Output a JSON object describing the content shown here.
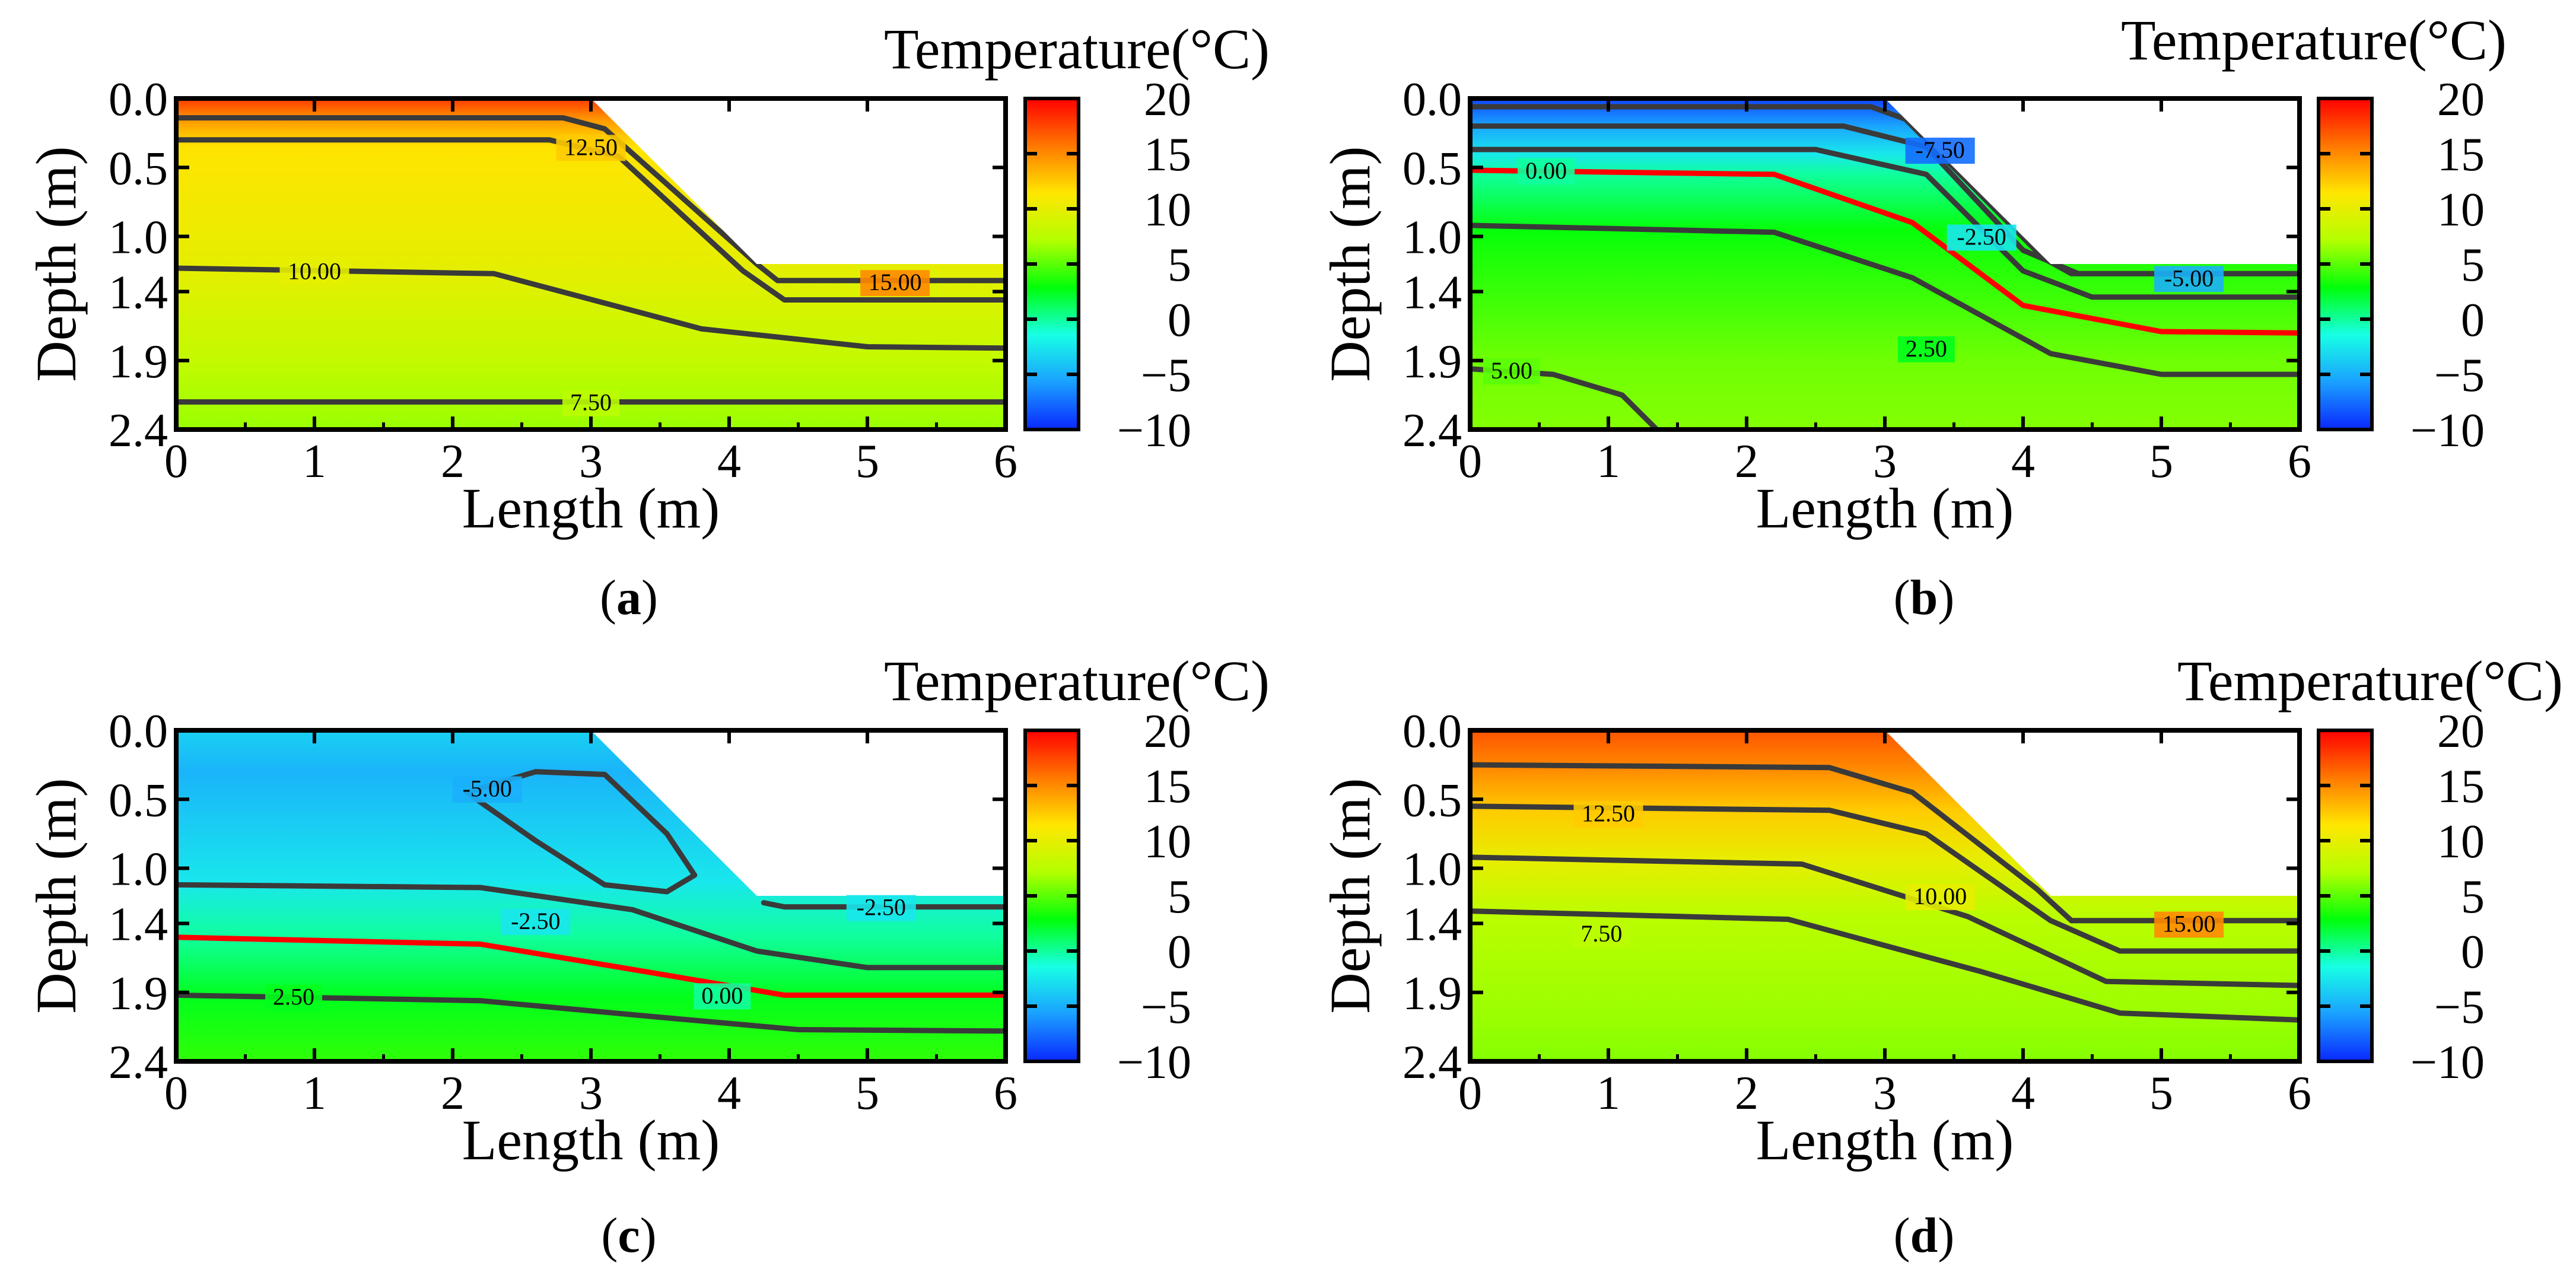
{
  "figure": {
    "panels_layout": "2x2 grid",
    "shared": {
      "xlabel": "Length (m)",
      "ylabel": "Depth (m)",
      "xlim": [
        0,
        6
      ],
      "ylim": [
        0,
        2.4
      ],
      "x_ticks": [
        "0",
        "1",
        "2",
        "3",
        "4",
        "5",
        "6"
      ],
      "y_ticks": [
        "0.0",
        "0.5",
        "1.0",
        "1.4",
        "1.9",
        "2.4"
      ],
      "y_tick_values": [
        0.0,
        0.5,
        1.0,
        1.4,
        1.9,
        2.4
      ],
      "colorbar_title": "Temperature(°C)",
      "colorbar_ticks": [
        "20",
        "15",
        "10",
        "5",
        "0",
        "−5",
        "−10"
      ],
      "colorbar_range": [
        -10,
        20
      ],
      "colormap": [
        "#0a28ff",
        "#1aa0ff",
        "#18ffe6",
        "#00ff0a",
        "#b4ff00",
        "#ffe600",
        "#ff7800",
        "#ff0000"
      ],
      "slope_geometry": {
        "crest_x": 3.0,
        "toe_x": 4.2,
        "toe_depth": 1.2,
        "note": "white unshaded region above the excavated slope"
      },
      "contour_line_color": "#3a3a3a",
      "zero_contour_color": "#ff0000"
    }
  },
  "chart_data": [
    {
      "type": "heatmap",
      "panel_label": "(a)",
      "label_letter": "a",
      "title": "Temperature(°C)",
      "xlabel": "Length (m)",
      "ylabel": "Depth (m)",
      "xlim": [
        0,
        6
      ],
      "ylim": [
        0,
        2.4
      ],
      "contour_labels": [
        {
          "text": "12.50",
          "value": 12.5,
          "x": 3.0,
          "y": 0.35
        },
        {
          "text": "10.00",
          "value": 10.0,
          "x": 1.0,
          "y": 1.25
        },
        {
          "text": "15.00",
          "value": 15.0,
          "x": 5.2,
          "y": 1.33
        },
        {
          "text": "7.50",
          "value": 7.5,
          "x": 3.0,
          "y": 2.2
        }
      ],
      "contours": [
        {
          "value": 15.0,
          "points": [
            [
              0,
              0.14
            ],
            [
              2.8,
              0.14
            ],
            [
              3.1,
              0.22
            ],
            [
              4.2,
              1.2
            ],
            [
              4.35,
              1.32
            ],
            [
              6,
              1.32
            ]
          ]
        },
        {
          "value": 12.5,
          "points": [
            [
              0,
              0.3
            ],
            [
              2.7,
              0.3
            ],
            [
              3.2,
              0.42
            ],
            [
              4.1,
              1.25
            ],
            [
              4.4,
              1.46
            ],
            [
              6,
              1.46
            ]
          ]
        },
        {
          "value": 10.0,
          "points": [
            [
              0,
              1.23
            ],
            [
              2.3,
              1.27
            ],
            [
              3.8,
              1.67
            ],
            [
              5,
              1.8
            ],
            [
              6,
              1.81
            ]
          ]
        },
        {
          "value": 7.5,
          "points": [
            [
              0,
              2.2
            ],
            [
              6,
              2.2
            ]
          ]
        }
      ],
      "field": {
        "surface_temp": 17.0,
        "upper_gradient": 13.0,
        "mid_temp": 10.5,
        "deep_temp": 7.0,
        "bands": [
          [
            0.0,
            18.0
          ],
          [
            0.15,
            14.5
          ],
          [
            0.35,
            11.5
          ],
          [
            1.2,
            10.0
          ],
          [
            1.9,
            8.0
          ],
          [
            2.4,
            6.5
          ]
        ]
      }
    },
    {
      "type": "heatmap",
      "panel_label": "(b)",
      "label_letter": "b",
      "title": "Temperature(°C)",
      "xlabel": "Length (m)",
      "ylabel": "Depth (m)",
      "xlim": [
        0,
        6
      ],
      "ylim": [
        0,
        2.4
      ],
      "contour_labels": [
        {
          "text": "-7.50",
          "value": -7.5,
          "x": 3.4,
          "y": 0.37
        },
        {
          "text": "0.00",
          "value": 0.0,
          "x": 0.55,
          "y": 0.52
        },
        {
          "text": "-2.50",
          "value": -2.5,
          "x": 3.7,
          "y": 1.0
        },
        {
          "text": "-5.00",
          "value": -5.0,
          "x": 5.2,
          "y": 1.3
        },
        {
          "text": "2.50",
          "value": 2.5,
          "x": 3.3,
          "y": 1.81
        },
        {
          "text": "5.00",
          "value": 5.0,
          "x": 0.3,
          "y": 1.97
        }
      ],
      "contours": [
        {
          "value": -7.5,
          "points": [
            [
              0,
              0.06
            ],
            [
              2.9,
              0.06
            ],
            [
              3.15,
              0.15
            ],
            [
              4.15,
              1.16
            ],
            [
              4.35,
              1.27
            ],
            [
              6,
              1.27
            ]
          ]
        },
        {
          "value": -5.0,
          "points": [
            [
              0,
              0.2
            ],
            [
              2.7,
              0.2
            ],
            [
              3.3,
              0.35
            ],
            [
              4.0,
              1.1
            ],
            [
              4.4,
              1.27
            ],
            [
              6,
              1.27
            ]
          ]
        },
        {
          "value": -2.5,
          "points": [
            [
              0,
              0.37
            ],
            [
              2.5,
              0.37
            ],
            [
              3.3,
              0.55
            ],
            [
              4.0,
              1.25
            ],
            [
              4.5,
              1.44
            ],
            [
              6,
              1.44
            ]
          ]
        },
        {
          "value": 0.0,
          "points": [
            [
              0,
              0.52
            ],
            [
              2.2,
              0.55
            ],
            [
              3.2,
              0.9
            ],
            [
              4.0,
              1.5
            ],
            [
              5,
              1.69
            ],
            [
              6,
              1.7
            ]
          ]
        },
        {
          "value": 2.5,
          "points": [
            [
              0,
              0.92
            ],
            [
              2.2,
              0.97
            ],
            [
              3.2,
              1.3
            ],
            [
              4.2,
              1.85
            ],
            [
              5,
              2.0
            ],
            [
              6,
              2.0
            ]
          ]
        },
        {
          "value": 5.0,
          "points": [
            [
              0,
              1.96
            ],
            [
              0.6,
              2.0
            ],
            [
              1.1,
              2.15
            ],
            [
              1.35,
              2.4
            ]
          ]
        }
      ],
      "field": {
        "bands": [
          [
            0.0,
            -9.0
          ],
          [
            0.2,
            -5.5
          ],
          [
            0.4,
            -2.5
          ],
          [
            0.55,
            0.0
          ],
          [
            0.95,
            3.0
          ],
          [
            1.9,
            5.5
          ],
          [
            2.4,
            6.0
          ]
        ]
      }
    },
    {
      "type": "heatmap",
      "panel_label": "(c)",
      "label_letter": "c",
      "title": "Temperature(°C)",
      "xlabel": "Length (m)",
      "ylabel": "Depth (m)",
      "xlim": [
        0,
        6
      ],
      "ylim": [
        0,
        2.4
      ],
      "contour_labels": [
        {
          "text": "-5.00",
          "value": -5.0,
          "x": 2.25,
          "y": 0.42
        },
        {
          "text": "-2.50",
          "value": -2.5,
          "x": 5.1,
          "y": 1.28
        },
        {
          "text": "-2.50",
          "value": -2.5,
          "x": 2.6,
          "y": 1.38
        },
        {
          "text": "0.00",
          "value": 0.0,
          "x": 3.95,
          "y": 1.92
        },
        {
          "text": "2.50",
          "value": 2.5,
          "x": 0.85,
          "y": 1.93
        }
      ],
      "contours": [
        {
          "value": -5.0,
          "closed": true,
          "points": [
            [
              2.1,
              0.45
            ],
            [
              2.6,
              0.3
            ],
            [
              3.1,
              0.32
            ],
            [
              3.55,
              0.75
            ],
            [
              3.75,
              1.05
            ],
            [
              3.55,
              1.17
            ],
            [
              3.1,
              1.12
            ],
            [
              2.6,
              0.8
            ],
            [
              2.1,
              0.45
            ]
          ]
        },
        {
          "value": -2.5,
          "points": [
            [
              0,
              1.12
            ],
            [
              2.2,
              1.14
            ],
            [
              3.3,
              1.3
            ],
            [
              4.2,
              1.6
            ],
            [
              5,
              1.72
            ],
            [
              6,
              1.72
            ]
          ]
        },
        {
          "value": -2.5,
          "points": [
            [
              4.25,
              1.25
            ],
            [
              4.4,
              1.28
            ],
            [
              6,
              1.28
            ]
          ]
        },
        {
          "value": 0.0,
          "points": [
            [
              0,
              1.5
            ],
            [
              2.2,
              1.55
            ],
            [
              3.4,
              1.75
            ],
            [
              4.4,
              1.92
            ],
            [
              6,
              1.92
            ]
          ]
        },
        {
          "value": 2.5,
          "points": [
            [
              0,
              1.92
            ],
            [
              2.2,
              1.96
            ],
            [
              3.5,
              2.08
            ],
            [
              4.5,
              2.17
            ],
            [
              6,
              2.18
            ]
          ]
        }
      ],
      "field": {
        "bands": [
          [
            0.0,
            -3.5
          ],
          [
            0.3,
            -4.8
          ],
          [
            1.1,
            -2.5
          ],
          [
            1.5,
            0.0
          ],
          [
            1.93,
            2.5
          ],
          [
            2.4,
            4.0
          ]
        ]
      }
    },
    {
      "type": "heatmap",
      "panel_label": "(d)",
      "label_letter": "d",
      "title": "Temperature(°C)",
      "xlabel": "Length (m)",
      "ylabel": "Depth (m)",
      "xlim": [
        0,
        6
      ],
      "ylim": [
        0,
        2.4
      ],
      "contour_labels": [
        {
          "text": "12.50",
          "value": 12.5,
          "x": 1.0,
          "y": 0.6
        },
        {
          "text": "10.00",
          "value": 10.0,
          "x": 3.4,
          "y": 1.2
        },
        {
          "text": "15.00",
          "value": 15.0,
          "x": 5.2,
          "y": 1.4
        },
        {
          "text": "7.50",
          "value": 7.5,
          "x": 0.95,
          "y": 1.47
        }
      ],
      "contours": [
        {
          "value": 15.0,
          "points": [
            [
              0,
              0.25
            ],
            [
              2.6,
              0.27
            ],
            [
              3.2,
              0.45
            ],
            [
              4.1,
              1.15
            ],
            [
              4.35,
              1.38
            ],
            [
              6,
              1.38
            ]
          ]
        },
        {
          "value": 12.5,
          "points": [
            [
              0,
              0.55
            ],
            [
              2.6,
              0.58
            ],
            [
              3.3,
              0.75
            ],
            [
              4.2,
              1.38
            ],
            [
              4.7,
              1.6
            ],
            [
              6,
              1.6
            ]
          ]
        },
        {
          "value": 10.0,
          "points": [
            [
              0,
              0.92
            ],
            [
              2.4,
              0.97
            ],
            [
              3.6,
              1.35
            ],
            [
              4.6,
              1.82
            ],
            [
              6,
              1.85
            ]
          ]
        },
        {
          "value": 7.5,
          "points": [
            [
              0,
              1.31
            ],
            [
              2.3,
              1.37
            ],
            [
              3.7,
              1.75
            ],
            [
              4.7,
              2.05
            ],
            [
              6,
              2.1
            ]
          ]
        }
      ],
      "field": {
        "bands": [
          [
            0.0,
            17.0
          ],
          [
            0.28,
            15.0
          ],
          [
            0.58,
            12.5
          ],
          [
            0.95,
            10.0
          ],
          [
            1.35,
            7.5
          ],
          [
            2.1,
            6.5
          ],
          [
            2.4,
            6.0
          ]
        ]
      }
    }
  ]
}
